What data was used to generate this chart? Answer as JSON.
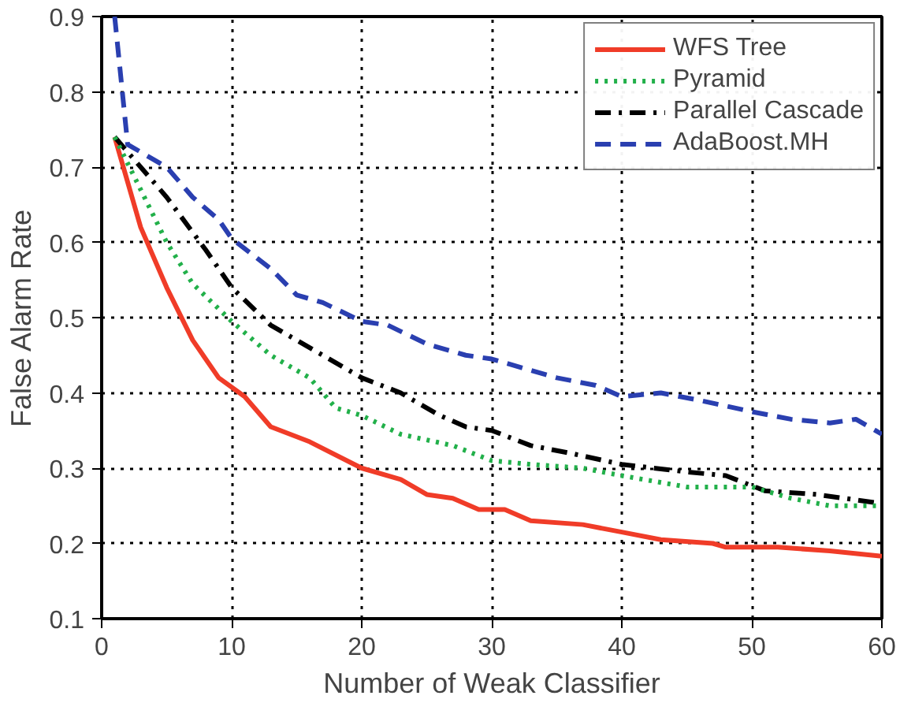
{
  "chart_data": {
    "type": "line",
    "xlabel": "Number of Weak Classifier",
    "ylabel": "False Alarm Rate",
    "xlim": [
      0,
      60
    ],
    "ylim": [
      0.1,
      0.9
    ],
    "xticks": [
      0,
      10,
      20,
      30,
      40,
      50,
      60
    ],
    "yticks": [
      0.1,
      0.2,
      0.3,
      0.4,
      0.5,
      0.6,
      0.7,
      0.8,
      0.9
    ],
    "grid": true,
    "legend": "top right",
    "series": [
      {
        "name": "WFS Tree",
        "color": "#f03c28",
        "line_style": "solid",
        "x": [
          1,
          2,
          3,
          5,
          7,
          9,
          11,
          13,
          16,
          20,
          23,
          25,
          27,
          29,
          31,
          33,
          37,
          40,
          43,
          47,
          48,
          52,
          56,
          60
        ],
        "values": [
          0.74,
          0.68,
          0.62,
          0.54,
          0.47,
          0.42,
          0.395,
          0.355,
          0.335,
          0.3,
          0.285,
          0.265,
          0.26,
          0.245,
          0.245,
          0.23,
          0.225,
          0.215,
          0.205,
          0.2,
          0.195,
          0.195,
          0.19,
          0.183
        ]
      },
      {
        "name": "Pyramid",
        "color": "#22b04a",
        "line_style": "dotted",
        "x": [
          1,
          3,
          5,
          7,
          10,
          13,
          16,
          18,
          20,
          23,
          27,
          30,
          33,
          37,
          40,
          45,
          50,
          53,
          56,
          60
        ],
        "values": [
          0.74,
          0.67,
          0.6,
          0.545,
          0.495,
          0.45,
          0.42,
          0.38,
          0.37,
          0.345,
          0.33,
          0.31,
          0.305,
          0.3,
          0.29,
          0.275,
          0.275,
          0.26,
          0.25,
          0.25
        ]
      },
      {
        "name": "Parallel Cascade",
        "color": "#000000",
        "line_style": "dashdot",
        "x": [
          1,
          3,
          5,
          8,
          10,
          13,
          17,
          20,
          23,
          26,
          28,
          30,
          33,
          36,
          40,
          45,
          48,
          51,
          55,
          60
        ],
        "values": [
          0.74,
          0.7,
          0.66,
          0.59,
          0.54,
          0.49,
          0.45,
          0.42,
          0.4,
          0.37,
          0.355,
          0.35,
          0.33,
          0.32,
          0.305,
          0.295,
          0.29,
          0.27,
          0.265,
          0.253
        ]
      },
      {
        "name": "AdaBoost.MH",
        "color": "#2a3fb0",
        "line_style": "dashed",
        "x": [
          1,
          2,
          5,
          7,
          9,
          10,
          13,
          15,
          17,
          20,
          22,
          25,
          28,
          30,
          32,
          35,
          38,
          40,
          43,
          46,
          50,
          53,
          56,
          58,
          60
        ],
        "values": [
          0.9,
          0.73,
          0.7,
          0.66,
          0.63,
          0.605,
          0.565,
          0.53,
          0.52,
          0.495,
          0.49,
          0.465,
          0.45,
          0.445,
          0.435,
          0.42,
          0.41,
          0.395,
          0.4,
          0.39,
          0.375,
          0.365,
          0.36,
          0.365,
          0.345
        ]
      }
    ]
  }
}
